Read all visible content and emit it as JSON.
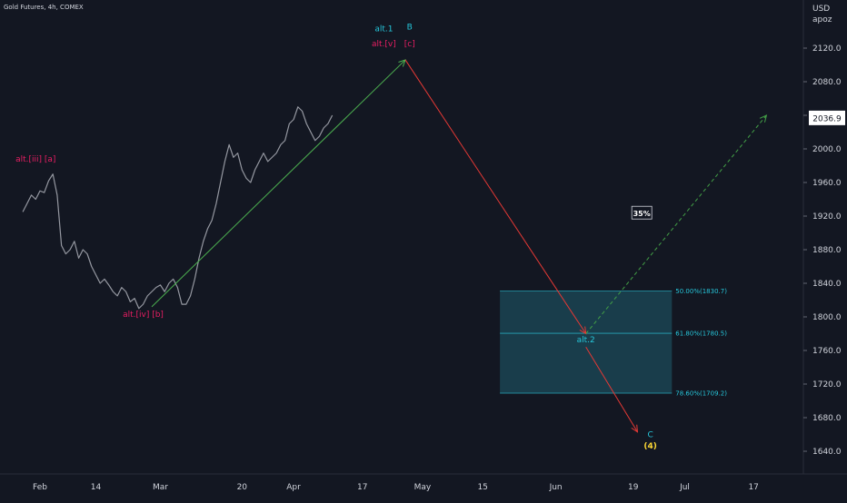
{
  "header": {
    "symbol_title": "Gold Futures, 4h, COMEX",
    "currency": "USD",
    "scale_mode": "apoz"
  },
  "chart_data": {
    "type": "line",
    "title": "Gold Futures, 4h, COMEX",
    "ylabel": "USD",
    "ylim": [
      1620,
      2160
    ],
    "grid": false,
    "y_ticks": [
      2120,
      2080,
      2040,
      2000,
      1960,
      1920,
      1880,
      1840,
      1800,
      1760,
      1720,
      1680,
      1640
    ],
    "x_ticks": [
      {
        "label": "Feb",
        "day": 0
      },
      {
        "label": "14",
        "day": 13
      },
      {
        "label": "Mar",
        "day": 28
      },
      {
        "label": "20",
        "day": 47
      },
      {
        "label": "Apr",
        "day": 59
      },
      {
        "label": "17",
        "day": 75
      },
      {
        "label": "May",
        "day": 89
      },
      {
        "label": "15",
        "day": 103
      },
      {
        "label": "Jun",
        "day": 120
      },
      {
        "label": "19",
        "day": 138
      },
      {
        "label": "Jul",
        "day": 150
      },
      {
        "label": "17",
        "day": 166
      }
    ],
    "current_price": 2036.9,
    "series": [
      {
        "name": "",
        "color": "#9598a1",
        "x_day": [
          -4,
          -3,
          -2,
          -1,
          0,
          1,
          2,
          3,
          4,
          5,
          6,
          7,
          8,
          9,
          10,
          11,
          12,
          13,
          14,
          15,
          16,
          17,
          18,
          19,
          20,
          21,
          22,
          23,
          24,
          25,
          26,
          27,
          28,
          29,
          30,
          31,
          32,
          33,
          34,
          35,
          36,
          37,
          38,
          39,
          40,
          41,
          42,
          43,
          44,
          45,
          46,
          47,
          48,
          49,
          50,
          51,
          52,
          53,
          54,
          55,
          56,
          57,
          58,
          59,
          60,
          61,
          62,
          63,
          64,
          65,
          66,
          67,
          68
        ],
        "values": [
          1925,
          1935,
          1945,
          1940,
          1950,
          1948,
          1962,
          1970,
          1945,
          1885,
          1875,
          1880,
          1890,
          1870,
          1880,
          1875,
          1860,
          1850,
          1840,
          1845,
          1838,
          1830,
          1825,
          1835,
          1830,
          1818,
          1822,
          1810,
          1815,
          1825,
          1830,
          1835,
          1838,
          1830,
          1840,
          1845,
          1835,
          1815,
          1815,
          1825,
          1845,
          1870,
          1890,
          1905,
          1915,
          1935,
          1960,
          1985,
          2005,
          1990,
          1995,
          1975,
          1965,
          1960,
          1975,
          1985,
          1995,
          1985,
          1990,
          1995,
          2005,
          2010,
          2030,
          2035,
          2050,
          2045,
          2030,
          2020,
          2010,
          2015,
          2025,
          2030,
          2040
        ]
      }
    ],
    "projection_lines": [
      {
        "color": "#4caf50",
        "style": "solid",
        "from": {
          "day": 26,
          "price": 1812
        },
        "to": {
          "day": 85,
          "price": 2106
        }
      },
      {
        "color": "#e53935",
        "style": "solid",
        "from": {
          "day": 85,
          "price": 2106
        },
        "to": {
          "day": 127,
          "price": 1780
        }
      },
      {
        "color": "#e53935",
        "style": "solid",
        "from": {
          "day": 127,
          "price": 1764
        },
        "to": {
          "day": 139,
          "price": 1663
        }
      },
      {
        "color": "#43a047",
        "style": "dashed",
        "from": {
          "day": 127,
          "price": 1780
        },
        "to": {
          "day": 169,
          "price": 2040
        }
      }
    ],
    "fib_zone": {
      "fill": "#1f5c6e",
      "levels": [
        {
          "label": "50.00%(1830.7)",
          "price": 1830.7
        },
        {
          "label": "61.80%(1780.5)",
          "price": 1780.5
        },
        {
          "label": "78.60%(1709.2)",
          "price": 1709.2
        }
      ],
      "day_start": 107,
      "day_end": 147
    },
    "annotations": [
      {
        "text": "alt.[iii] [a]",
        "color": "#e91e63",
        "day": -1,
        "price": 1985
      },
      {
        "text": "alt.[iv] [b]",
        "color": "#e91e63",
        "day": 24,
        "price": 1800
      },
      {
        "text": "alt.1",
        "color": "#26c6da",
        "day": 80,
        "price": 2140
      },
      {
        "text": "B",
        "color": "#26c6da",
        "day": 86,
        "price": 2142
      },
      {
        "text": "alt.[v]",
        "color": "#e91e63",
        "day": 80,
        "price": 2122
      },
      {
        "text": "[c]",
        "color": "#e91e63",
        "day": 86,
        "price": 2122
      },
      {
        "text": "alt.2",
        "color": "#26c6da",
        "day": 127,
        "price": 1770
      },
      {
        "text": "C",
        "color": "#26c6da",
        "day": 142,
        "price": 1657
      },
      {
        "text": "(4)",
        "color": "#fdd835",
        "day": 142,
        "price": 1643
      }
    ],
    "probability_badge": {
      "text": "35%",
      "day": 140,
      "price": 1923
    }
  }
}
